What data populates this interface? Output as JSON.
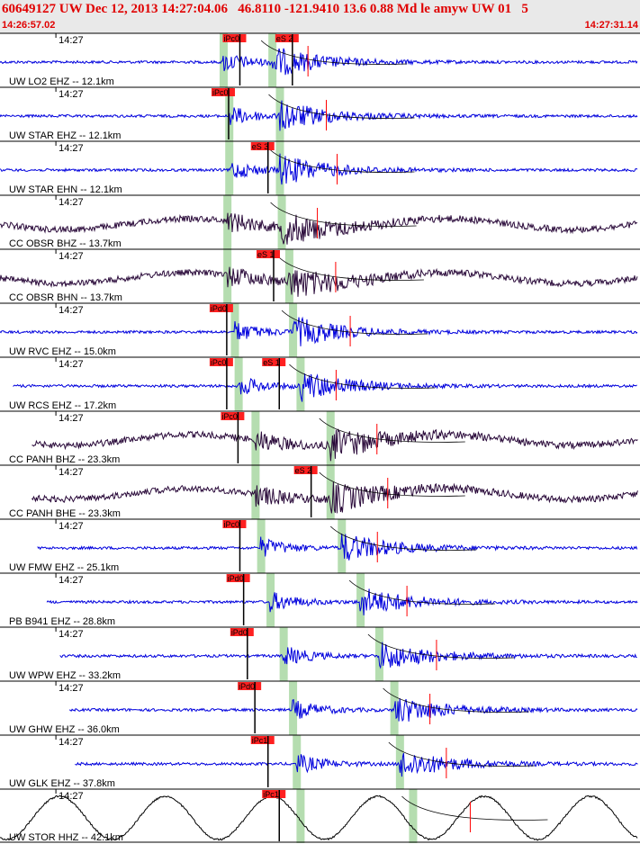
{
  "header": {
    "title": "60649127 UW Dec 12, 2013 14:27:04.06   46.8110 -121.9410 13.6 0.88 Md le amyw UW 01   5",
    "time_start": "14:26:57.02",
    "time_end": "14:27:31.14"
  },
  "colors": {
    "header_bg": "#e9e9e9",
    "header_text": "#e00000",
    "trace_blue": "#0000dd",
    "trace_purple": "#2a0a3a",
    "trace_black": "#000000",
    "pick_box": "#ff2020",
    "phase_band": "#b5ddb0"
  },
  "chart_data": {
    "type": "line",
    "title": "60649127 UW Dec 12, 2013 14:27:04.06   46.8110 -121.9410 13.6 0.88 Md le amyw UW 01   5",
    "x_range": [
      "14:26:57.02",
      "14:27:31.14"
    ],
    "tick_label": "14:27",
    "series": [
      {
        "label": "UW LO2 EHZ -- 12.1km",
        "dist_km": 12.1,
        "color": "blue",
        "picks": [
          {
            "text": "iPc0",
            "t": 12.5
          },
          {
            "text": "eS 2",
            "t": 15.3
          }
        ],
        "lp": 11.9,
        "ls": 14.5,
        "tstart": 0.0,
        "tend": 34.0
      },
      {
        "label": "UW STAR EHZ -- 12.1km",
        "dist_km": 12.1,
        "color": "blue",
        "picks": [
          {
            "text": "iPc0",
            "t": 11.9
          }
        ],
        "lp": 12.2,
        "ls": 14.9,
        "tstart": 0.0,
        "tend": 34.0
      },
      {
        "label": "UW STAR EHN -- 12.1km",
        "dist_km": 12.1,
        "color": "blue",
        "picks": [
          {
            "text": "eS 3",
            "t": 14.0
          }
        ],
        "lp": 12.2,
        "ls": 14.9,
        "tstart": 0.0,
        "tend": 34.0
      },
      {
        "label": "CC OBSR BHZ -- 13.7km",
        "dist_km": 13.7,
        "color": "purple",
        "picks": [],
        "lp": 12.1,
        "ls": 15.0,
        "tstart": 0.0,
        "tend": 34.0
      },
      {
        "label": "CC OBSR BHN -- 13.7km",
        "dist_km": 13.7,
        "color": "purple",
        "picks": [
          {
            "text": "eS 1",
            "t": 14.3
          }
        ],
        "lp": 12.1,
        "ls": 15.4,
        "tstart": 0.0,
        "tend": 34.0
      },
      {
        "label": "UW RVC EHZ -- 15.0km",
        "dist_km": 15.0,
        "color": "blue",
        "picks": [
          {
            "text": "iPd0",
            "t": 11.8
          }
        ],
        "lp": 12.5,
        "ls": 15.6,
        "tstart": 0.0,
        "tend": 34.0
      },
      {
        "label": "UW RCS EHZ -- 17.2km",
        "dist_km": 17.2,
        "color": "blue",
        "picks": [
          {
            "text": "iPc0",
            "t": 11.8
          },
          {
            "text": "eS 1",
            "t": 14.6
          }
        ],
        "lp": 12.7,
        "ls": 16.0,
        "tstart": 0.7,
        "tend": 34.0
      },
      {
        "label": "CC PANH BHZ -- 23.3km",
        "dist_km": 23.3,
        "color": "purple",
        "picks": [
          {
            "text": "iPc0",
            "t": 12.4
          }
        ],
        "lp": 13.6,
        "ls": 17.6,
        "tstart": 1.7,
        "tend": 34.0
      },
      {
        "label": "CC PANH BHE -- 23.3km",
        "dist_km": 23.3,
        "color": "purple",
        "picks": [
          {
            "text": "eS 2",
            "t": 16.3
          }
        ],
        "lp": 13.6,
        "ls": 17.6,
        "tstart": 1.7,
        "tend": 34.0
      },
      {
        "label": "UW FMW EHZ -- 25.1km",
        "dist_km": 25.1,
        "color": "blue",
        "picks": [
          {
            "text": "iPc0",
            "t": 12.5
          }
        ],
        "lp": 13.9,
        "ls": 18.2,
        "tstart": 2.0,
        "tend": 34.0
      },
      {
        "label": "PB B941 EHZ -- 28.8km",
        "dist_km": 28.8,
        "color": "blue",
        "picks": [
          {
            "text": "iPd0",
            "t": 12.7
          }
        ],
        "lp": 14.4,
        "ls": 19.2,
        "tstart": 2.5,
        "tend": 34.0
      },
      {
        "label": "UW WPW EHZ -- 33.2km",
        "dist_km": 33.2,
        "color": "blue",
        "picks": [
          {
            "text": "iPd0",
            "t": 12.9
          }
        ],
        "lp": 15.1,
        "ls": 20.2,
        "tstart": 3.2,
        "tend": 34.0
      },
      {
        "label": "UW GHW EHZ -- 36.0km",
        "dist_km": 36.0,
        "color": "blue",
        "picks": [
          {
            "text": "iPd0",
            "t": 13.3
          }
        ],
        "lp": 15.6,
        "ls": 21.0,
        "tstart": 3.7,
        "tend": 34.0
      },
      {
        "label": "UW GLK EHZ -- 37.8km",
        "dist_km": 37.8,
        "color": "blue",
        "picks": [
          {
            "text": "iPc1",
            "t": 14.0
          }
        ],
        "lp": 15.8,
        "ls": 21.3,
        "tstart": 4.0,
        "tend": 34.0
      },
      {
        "label": "UW STOR HHZ -- 42.1km",
        "dist_km": 42.1,
        "color": "black",
        "picks": [
          {
            "text": "iPc1",
            "t": 14.6
          }
        ],
        "lp": 16.0,
        "ls": 22.0,
        "tstart": 0.0,
        "tend": 34.0
      }
    ]
  }
}
